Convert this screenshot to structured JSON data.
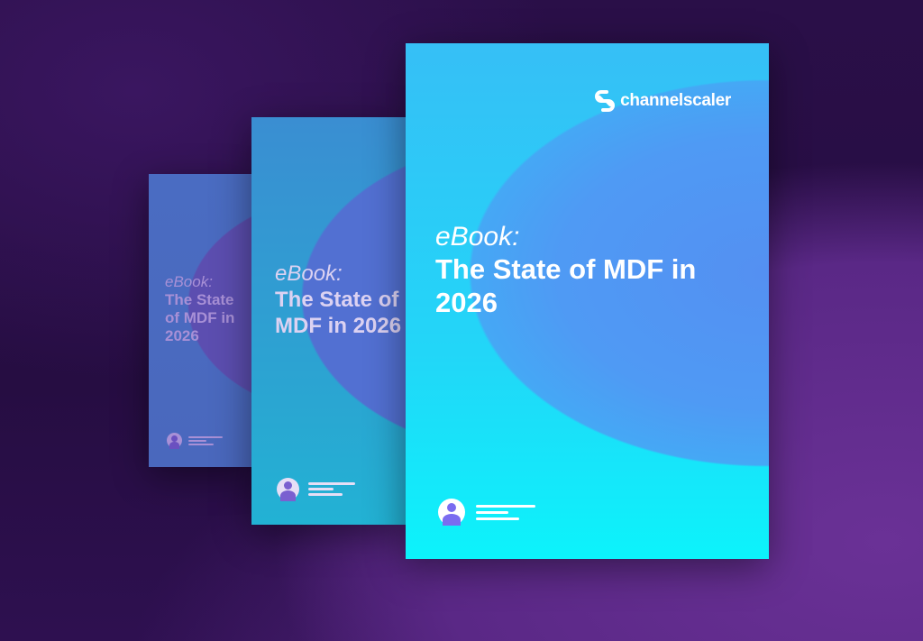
{
  "brand": {
    "name": "channelscaler",
    "icon": "channelscaler-logo"
  },
  "colors": {
    "background": "#2a0f48",
    "cover_top": "#36bff6",
    "cover_bottom": "#0cf3fb",
    "blob": "#5a8ff2"
  },
  "cover": {
    "kicker": "eBook:",
    "headline": "The State of MDF in 2026"
  }
}
